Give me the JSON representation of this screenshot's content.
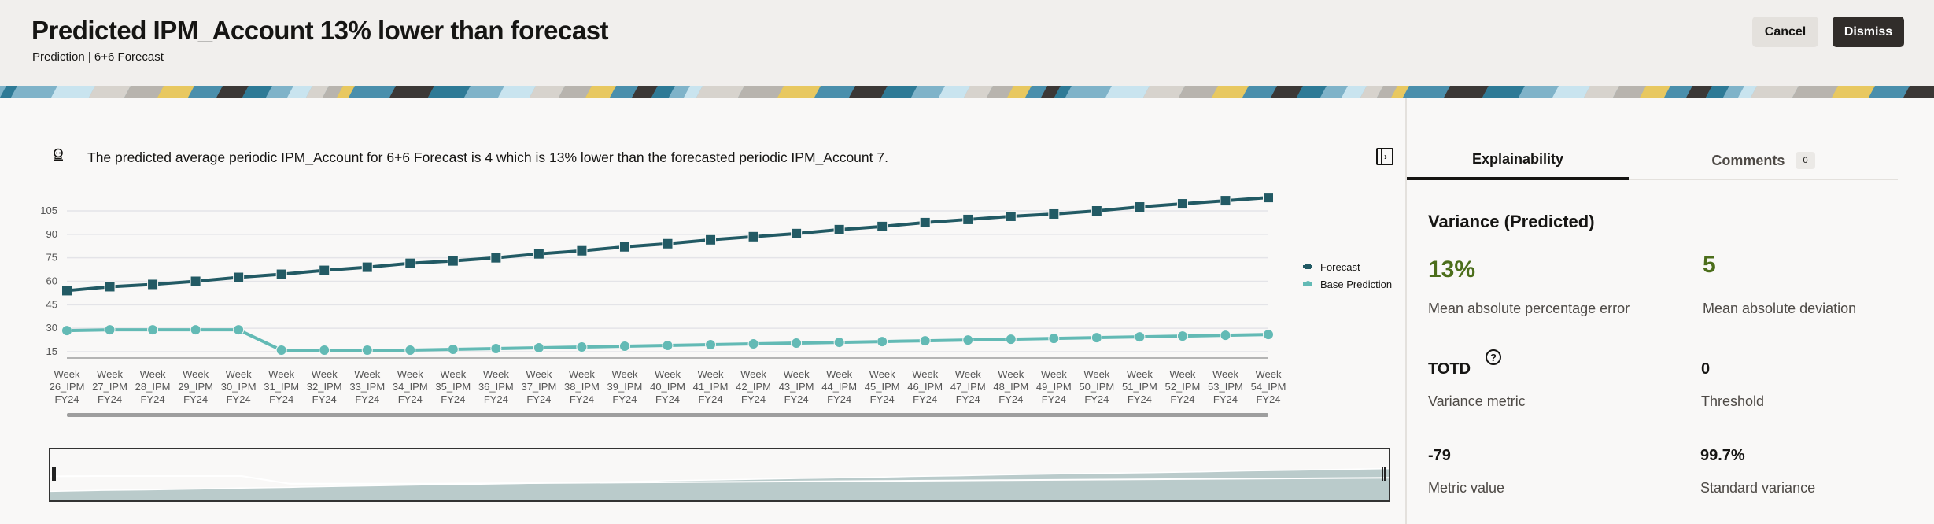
{
  "header": {
    "title": "Predicted IPM_Account 13% lower than forecast",
    "subtitle": "Prediction | 6+6 Forecast",
    "cancel_label": "Cancel",
    "dismiss_label": "Dismiss"
  },
  "summary": {
    "icon": "advisor-icon",
    "text": "The predicted average periodic IPM_Account for 6+6 Forecast is 4 which is 13% lower than the forecasted periodic IPM_Account 7."
  },
  "legend": {
    "items": [
      {
        "label": "Forecast",
        "color": "#225a64",
        "marker": "square"
      },
      {
        "label": "Base Prediction",
        "color": "#63bab5",
        "marker": "circle"
      }
    ]
  },
  "chart_data": {
    "type": "line",
    "title": "",
    "xlabel": "",
    "ylabel": "",
    "ylim": [
      10,
      115
    ],
    "yticks": [
      15,
      30,
      45,
      60,
      75,
      90,
      105
    ],
    "grid": true,
    "legend_position": "right",
    "categories": [
      "Week 26_IPM FY24",
      "Week 27_IPM FY24",
      "Week 28_IPM FY24",
      "Week 29_IPM FY24",
      "Week 30_IPM FY24",
      "Week 31_IPM FY24",
      "Week 32_IPM FY24",
      "Week 33_IPM FY24",
      "Week 34_IPM FY24",
      "Week 35_IPM FY24",
      "Week 36_IPM FY24",
      "Week 37_IPM FY24",
      "Week 38_IPM FY24",
      "Week 39_IPM FY24",
      "Week 40_IPM FY24",
      "Week 41_IPM FY24",
      "Week 42_IPM FY24",
      "Week 43_IPM FY24",
      "Week 44_IPM FY24",
      "Week 45_IPM FY24",
      "Week 46_IPM FY24",
      "Week 47_IPM FY24",
      "Week 48_IPM FY24",
      "Week 49_IPM FY24",
      "Week 50_IPM FY24",
      "Week 51_IPM FY24",
      "Week 52_IPM FY24",
      "Week 53_IPM FY24",
      "Week 54_IPM FY24"
    ],
    "series": [
      {
        "name": "Forecast",
        "color": "#225a64",
        "marker": "square",
        "values": [
          54,
          56.5,
          58,
          60,
          62.5,
          64.5,
          67,
          69,
          71.5,
          73,
          75,
          77.5,
          79.5,
          82,
          84,
          86.5,
          88.5,
          90.5,
          93,
          95,
          97.5,
          99.5,
          101.5,
          103,
          105,
          107.5,
          109.5,
          111.5,
          113.5
        ]
      },
      {
        "name": "Base Prediction",
        "color": "#63bab5",
        "marker": "circle",
        "values": [
          28.5,
          29,
          29,
          29,
          29,
          16,
          16,
          16,
          16,
          16.5,
          17,
          17.5,
          18,
          18.5,
          19,
          19.5,
          20,
          20.5,
          21,
          21.5,
          22,
          22.5,
          23,
          23.5,
          24,
          24.5,
          25,
          25.5,
          26
        ]
      }
    ]
  },
  "tabs": [
    {
      "label": "Explainability",
      "active": true
    },
    {
      "label": "Comments",
      "badge": "0",
      "active": false
    }
  ],
  "explainability": {
    "section_title": "Variance (Predicted)",
    "metrics": [
      {
        "value": "13%",
        "label": "Mean absolute percentage error"
      },
      {
        "value": "5",
        "label": "Mean absolute deviation"
      },
      {
        "value": "TOTD",
        "label": "Variance metric",
        "help": "?"
      },
      {
        "value": "0",
        "label": "Threshold"
      },
      {
        "value": "-79",
        "label": "Metric value"
      },
      {
        "value": "99.7%",
        "label": "Standard variance"
      }
    ]
  }
}
